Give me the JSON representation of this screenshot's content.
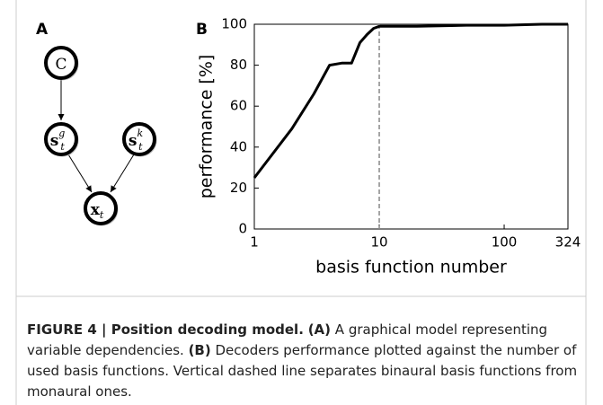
{
  "panel_a": {
    "label": "A",
    "nodes": [
      {
        "base": "C"
      },
      {
        "base": "s",
        "sub": "t",
        "sup": "g"
      },
      {
        "base": "s",
        "sub": "t",
        "sup": "k"
      },
      {
        "base": "x",
        "sub": "t"
      }
    ]
  },
  "chart_data": {
    "type": "line",
    "panel_label": "B",
    "xlabel": "basis function number",
    "ylabel": "performance [%]",
    "x": [
      1,
      2,
      3,
      4,
      5,
      6,
      7,
      8,
      9,
      10,
      20,
      50,
      100,
      200,
      324
    ],
    "series": [
      {
        "name": "performance",
        "color": "#000000",
        "values": [
          25,
          49,
          66,
          80,
          81,
          81,
          91,
          95,
          98,
          99,
          99,
          99.5,
          99.5,
          100,
          100
        ]
      }
    ],
    "xscale": "log",
    "xlim": [
      1,
      324
    ],
    "xticks": [
      1,
      10,
      100,
      324
    ],
    "ylim": [
      0,
      100
    ],
    "yticks": [
      0,
      20,
      40,
      60,
      80,
      100
    ],
    "vline": {
      "x": 10,
      "color": "#888888"
    }
  },
  "caption": {
    "figure": "FIGURE 4 | Position decoding model.",
    "a_label": "(A)",
    "a_text": "A graphical model representing variable dependencies.",
    "b_label": "(B)",
    "b_text": "Decoders performance plotted against the number of used basis functions. Vertical dashed line separates binaural basis functions from monaural ones."
  }
}
